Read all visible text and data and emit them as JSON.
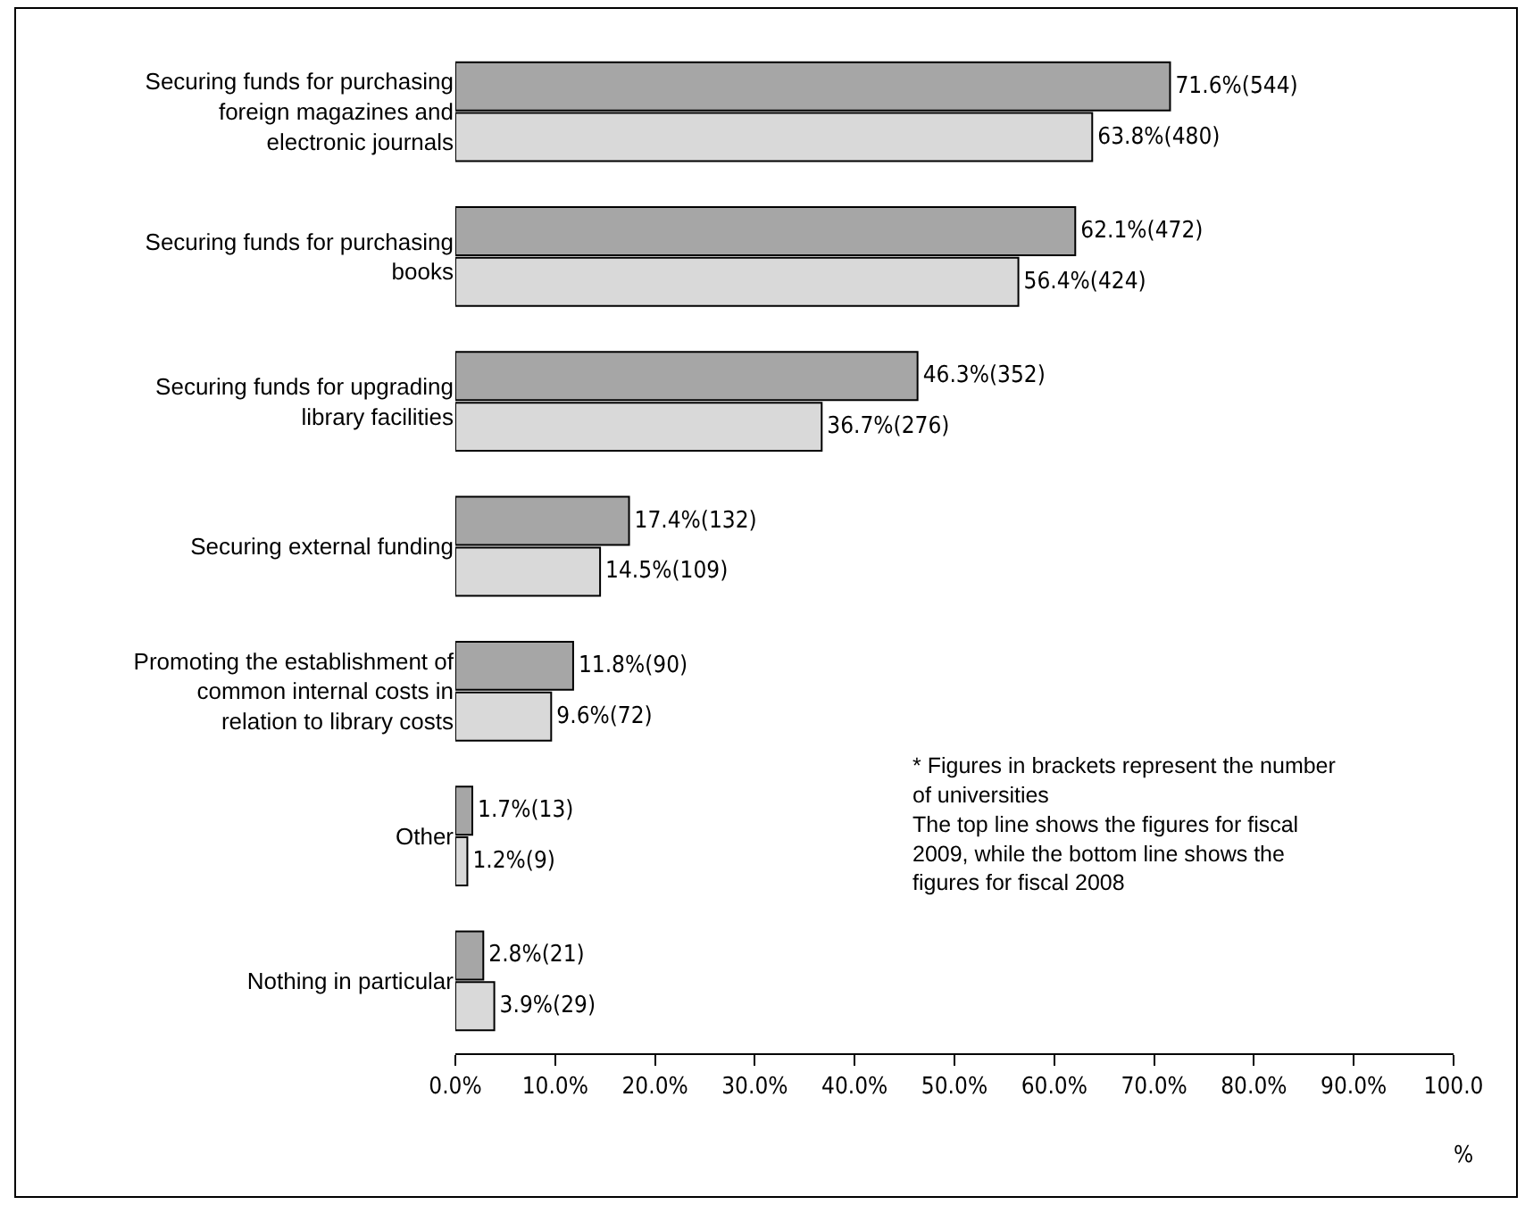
{
  "chart_data": {
    "type": "bar",
    "orientation": "horizontal",
    "categories": [
      "Securing funds for purchasing foreign magazines and electronic journals",
      "Securing funds for purchasing books",
      "Securing funds for upgrading library facilities",
      "Securing external funding",
      "Promoting the establishment of common internal costs in relation to library costs",
      "Other",
      "Nothing in particular"
    ],
    "series": [
      {
        "color": "#a6a6a6",
        "values": [
          71.6,
          62.1,
          46.3,
          17.4,
          11.8,
          1.7,
          2.8
        ],
        "value_labels": [
          "71.6%(544)",
          "62.1%(472)",
          "46.3%(352)",
          "17.4%(132)",
          "11.8%(90)",
          "1.7%(13)",
          "2.8%(21)"
        ]
      },
      {
        "color": "#d9d9d9",
        "values": [
          63.8,
          56.4,
          36.7,
          14.5,
          9.6,
          1.2,
          3.9
        ],
        "value_labels": [
          "63.8%(480)",
          "56.4%(424)",
          "36.7%(276)",
          "14.5%(109)",
          "9.6%(72)",
          "1.2%(9)",
          "3.9%(29)"
        ]
      }
    ],
    "xlim": [
      0,
      100
    ],
    "xticks": [
      {
        "value": 0,
        "label": "0.0%"
      },
      {
        "value": 10,
        "label": "10.0%"
      },
      {
        "value": 20,
        "label": "20.0%"
      },
      {
        "value": 30,
        "label": "30.0%"
      },
      {
        "value": 40,
        "label": "40.0%"
      },
      {
        "value": 50,
        "label": "50.0%"
      },
      {
        "value": 60,
        "label": "60.0%"
      },
      {
        "value": 70,
        "label": "70.0%"
      },
      {
        "value": 80,
        "label": "80.0%"
      },
      {
        "value": 90,
        "label": "90.0%"
      },
      {
        "value": 100,
        "label": "100.0"
      }
    ],
    "xlabel": "%",
    "annotations": [
      "* Figures in brackets represent the number of universities",
      "The top line shows the figures for fiscal 2009, while the bottom line shows the figures for fiscal 2008"
    ],
    "grid": false
  }
}
